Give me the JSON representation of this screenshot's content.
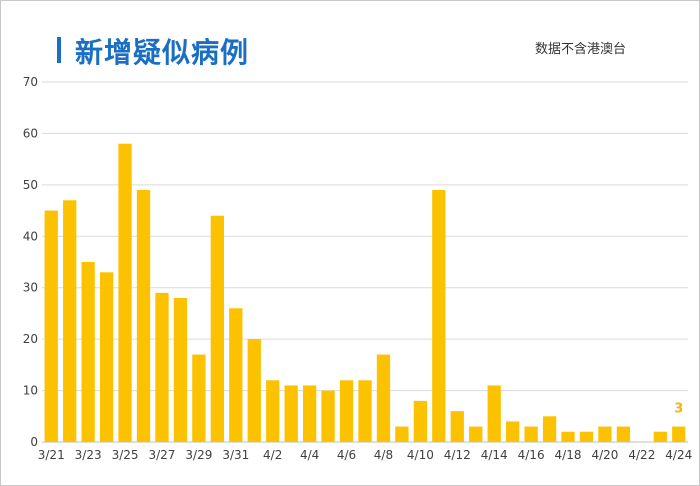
{
  "header": {
    "title": "新增疑似病例",
    "note": "数据不含港澳台"
  },
  "colors": {
    "accent": "#1a6fc4",
    "bar": "#fcc200",
    "label": "#f2b800",
    "grid": "#d9d9d9"
  },
  "chart_data": {
    "type": "bar",
    "title": "新增疑似病例",
    "xlabel": "",
    "ylabel": "",
    "ylim": [
      0,
      70
    ],
    "yticks": [
      0,
      10,
      20,
      30,
      40,
      50,
      60,
      70
    ],
    "grid": true,
    "categories": [
      "3/21",
      "3/22",
      "3/23",
      "3/24",
      "3/25",
      "3/26",
      "3/27",
      "3/28",
      "3/29",
      "3/30",
      "3/31",
      "4/1",
      "4/2",
      "4/3",
      "4/4",
      "4/5",
      "4/6",
      "4/7",
      "4/8",
      "4/9",
      "4/10",
      "4/11",
      "4/12",
      "4/13",
      "4/14",
      "4/15",
      "4/16",
      "4/17",
      "4/18",
      "4/19",
      "4/20",
      "4/21",
      "4/22",
      "4/23",
      "4/24"
    ],
    "tick_labels": [
      "3/21",
      "",
      "3/23",
      "",
      "3/25",
      "",
      "3/27",
      "",
      "3/29",
      "",
      "3/31",
      "",
      "4/2",
      "",
      "4/4",
      "",
      "4/6",
      "",
      "4/8",
      "",
      "4/10",
      "",
      "4/12",
      "",
      "4/14",
      "",
      "4/16",
      "",
      "4/18",
      "",
      "4/20",
      "",
      "4/22",
      "",
      "4/24"
    ],
    "values": [
      45,
      47,
      35,
      33,
      58,
      49,
      29,
      28,
      17,
      44,
      26,
      20,
      12,
      11,
      11,
      10,
      12,
      12,
      17,
      3,
      8,
      49,
      6,
      3,
      11,
      4,
      3,
      5,
      2,
      2,
      3,
      3,
      0,
      2,
      3
    ],
    "data_labels": [
      {
        "index": 34,
        "text": "3"
      }
    ]
  }
}
